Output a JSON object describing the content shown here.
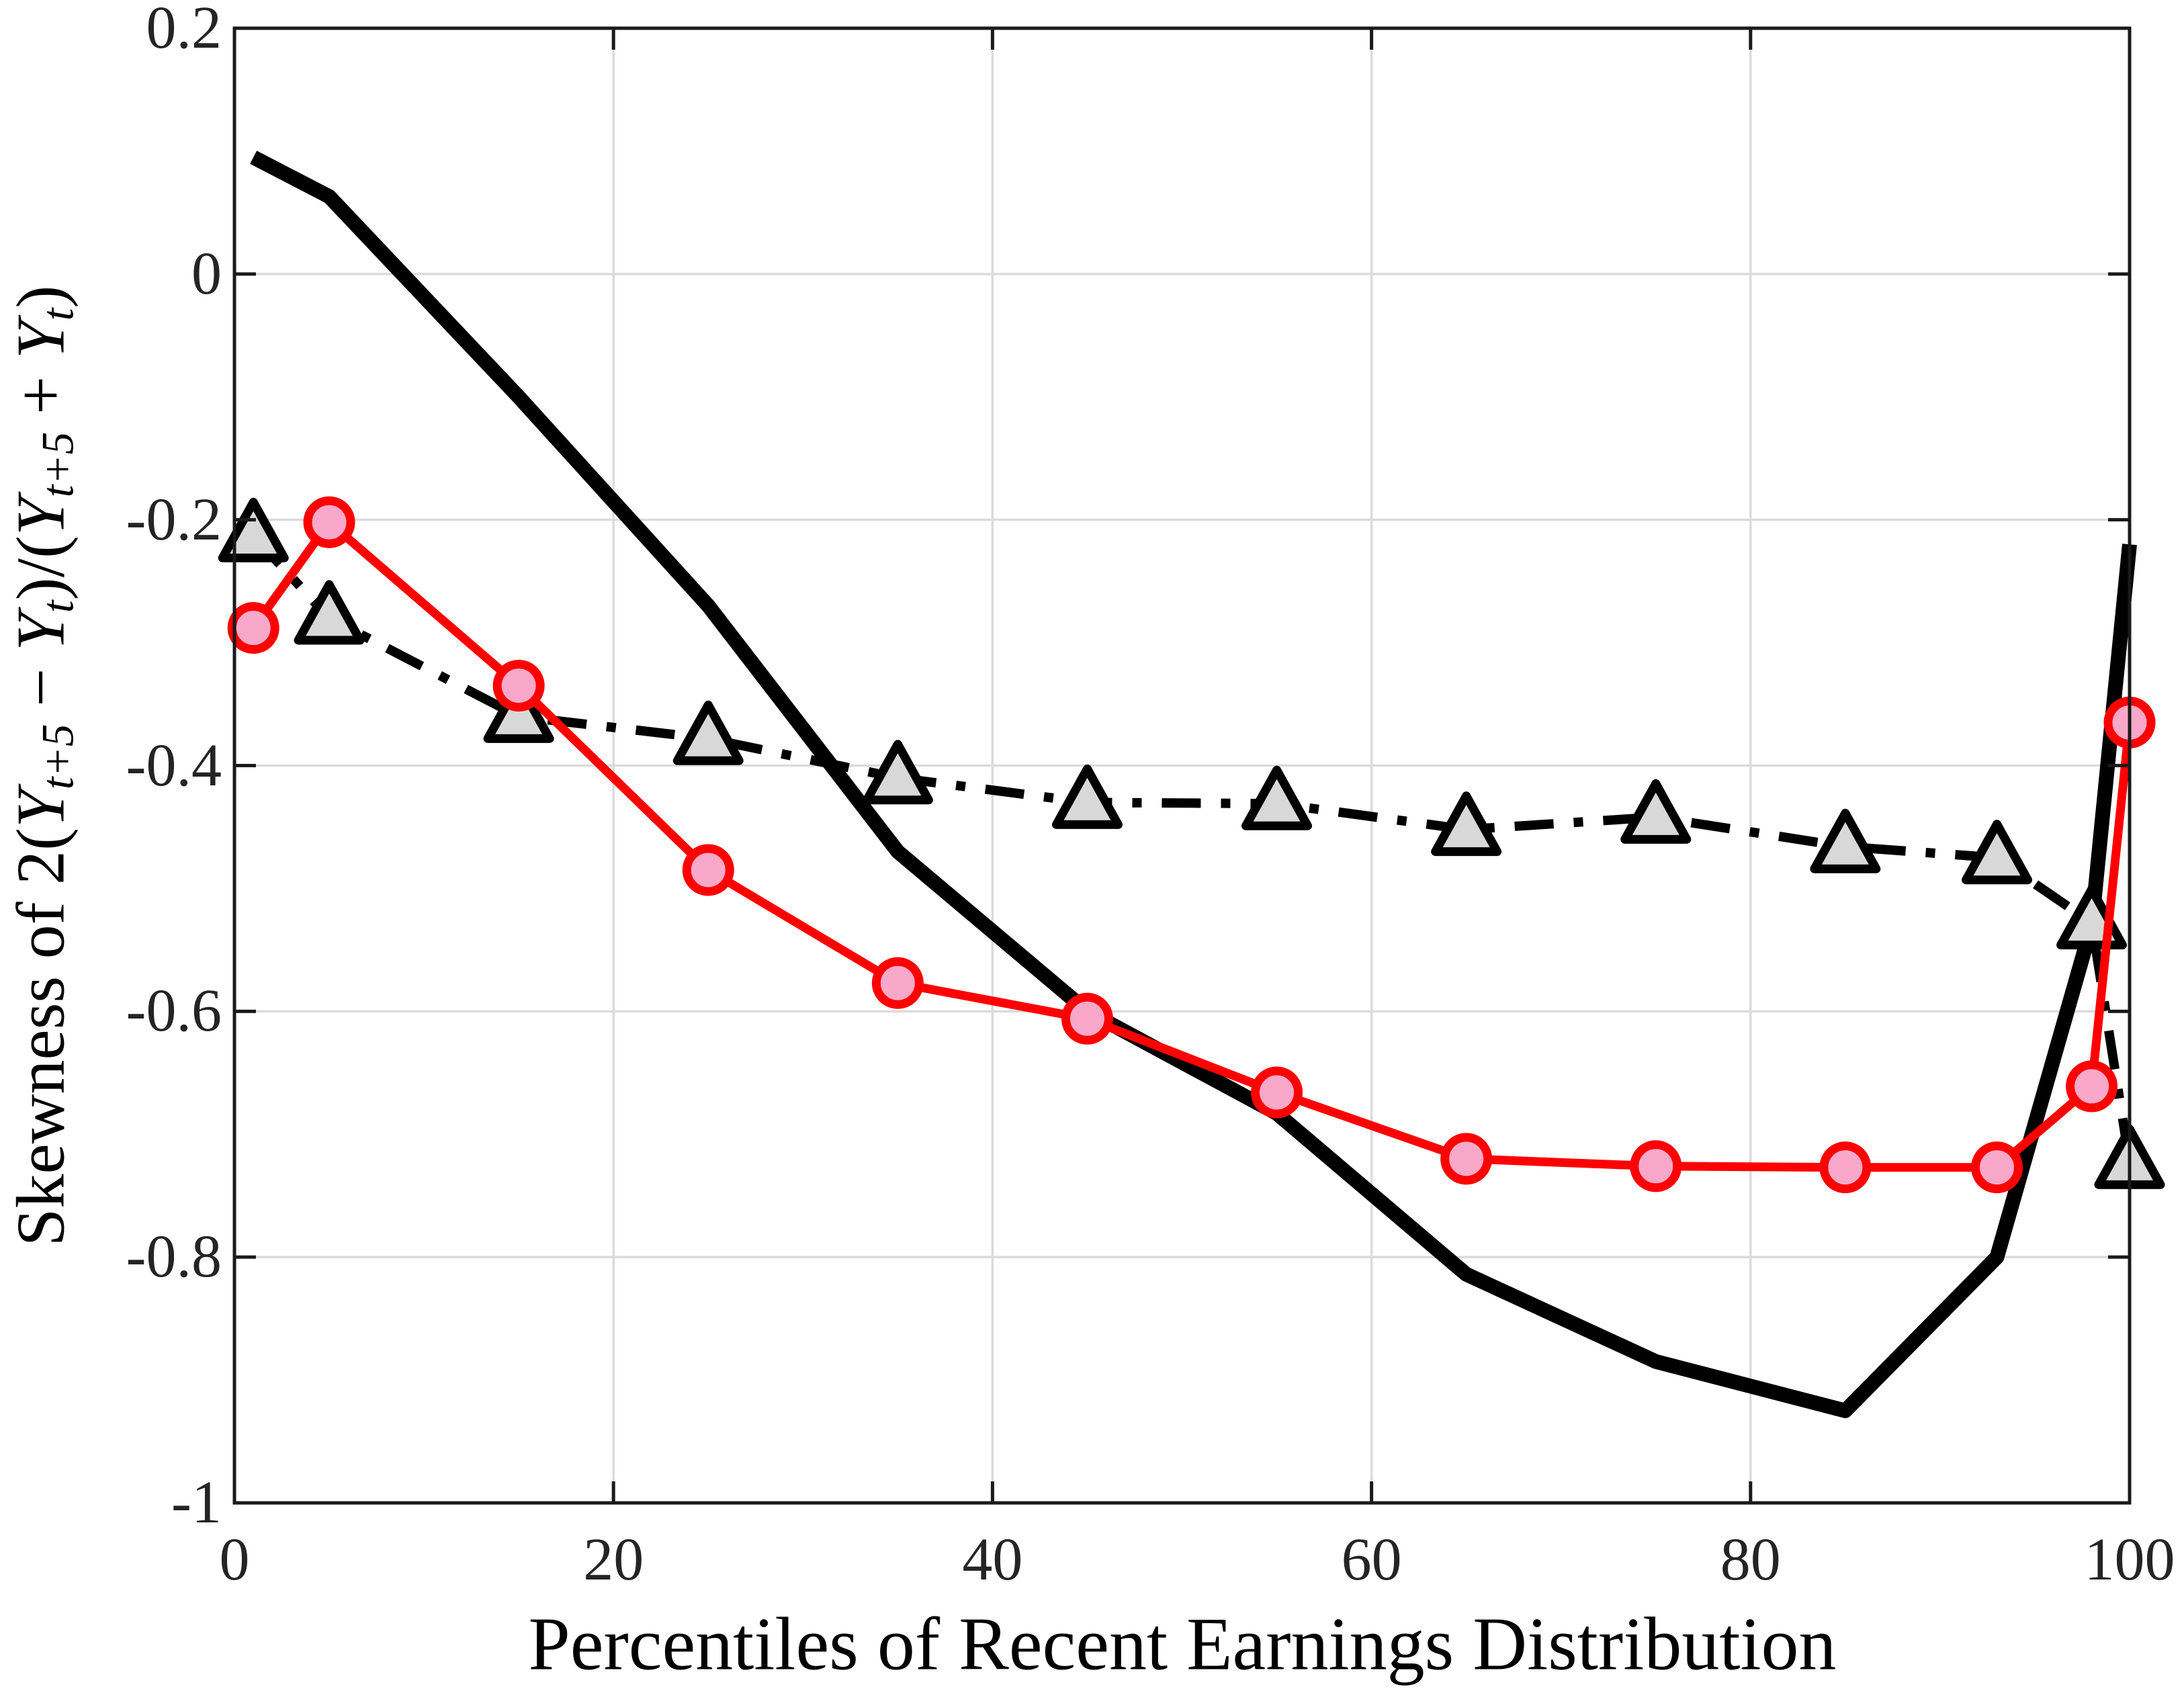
{
  "figure": {
    "background": "#FFFFFF",
    "axis_color": "#1A1A1A",
    "grid_color": "#DBDBDB",
    "tick_label_color": "#242424"
  },
  "axes": {
    "x": {
      "label": "Percentiles of Recent Earnings Distribution",
      "tick_labels": [
        "0",
        "20",
        "40",
        "60",
        "80",
        "100"
      ],
      "tick_values": [
        0,
        20,
        40,
        60,
        80,
        100
      ],
      "range": [
        0,
        100
      ]
    },
    "y": {
      "label_parts": [
        "Skewness of 2(",
        "Y",
        "t+5",
        " − ",
        "Y",
        "t",
        ")/(",
        "Y",
        "t+5",
        " + ",
        "Y",
        "t",
        ")"
      ],
      "tick_labels": [
        "0.2",
        "0",
        "-0.2",
        "-0.4",
        "-0.6",
        "-0.8",
        "-1"
      ],
      "tick_values": [
        0.2,
        0,
        -0.2,
        -0.4,
        -0.6,
        -0.8,
        -1
      ],
      "range": [
        -1,
        0.2
      ]
    },
    "grid": true
  },
  "chart_data": {
    "type": "line",
    "title": "",
    "xlabel": "Percentiles of Recent Earnings Distribution",
    "ylabel": "Skewness of 2(Y_t+5 − Y_t)/(Y_t+5 + Y_t)",
    "xlim": [
      0,
      100
    ],
    "ylim": [
      -1,
      0.2
    ],
    "grid": "on",
    "legend": "none",
    "x": [
      1,
      5,
      15,
      25,
      35,
      45,
      55,
      65,
      75,
      85,
      93,
      98,
      100
    ],
    "series": [
      {
        "name": "thick-solid-black-line",
        "values": [
          0.095,
          0.063,
          -0.1,
          -0.27,
          -0.47,
          -0.6,
          -0.683,
          -0.814,
          -0.885,
          -0.925,
          -0.8,
          -0.53,
          -0.22
        ],
        "color": "#000000",
        "line_style": "solid",
        "line_width": 22,
        "marker": "none"
      },
      {
        "name": "dashdot-gray-triangles",
        "values": [
          -0.213,
          -0.28,
          -0.36,
          -0.378,
          -0.41,
          -0.43,
          -0.431,
          -0.452,
          -0.442,
          -0.466,
          -0.475,
          -0.528,
          -0.723
        ],
        "color": "#000000",
        "line_style": "dashdot",
        "line_width": 14,
        "marker": "triangle",
        "marker_fill": "#D8D8D8",
        "marker_edge": "#000000"
      },
      {
        "name": "red-line-pink-circles",
        "values": [
          -0.288,
          -0.202,
          -0.335,
          -0.485,
          -0.577,
          -0.606,
          -0.666,
          -0.72,
          -0.726,
          -0.727,
          -0.727,
          -0.661,
          -0.365
        ],
        "color": "#FF0000",
        "line_style": "solid",
        "line_width": 13,
        "marker": "circle",
        "marker_fill": "#F9A8CA",
        "marker_edge": "#FF0000"
      }
    ]
  }
}
